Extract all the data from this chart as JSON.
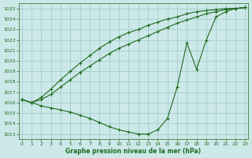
{
  "xlabel": "Graphe pression niveau de la mer (hPa)",
  "bg_color": "#cce8e8",
  "line_color": "#1f6b1f",
  "grid_color": "#9ec8c8",
  "ylim": [
    1012.5,
    1025.5
  ],
  "xlim": [
    -0.3,
    23.3
  ],
  "yticks": [
    1013,
    1014,
    1015,
    1016,
    1017,
    1018,
    1019,
    1020,
    1021,
    1022,
    1023,
    1024,
    1025
  ],
  "xticks": [
    0,
    1,
    2,
    3,
    4,
    5,
    6,
    7,
    8,
    9,
    10,
    11,
    12,
    13,
    14,
    15,
    16,
    17,
    18,
    19,
    20,
    21,
    22,
    23
  ],
  "line1": [
    1016.3,
    1016.0,
    1016.5,
    1017.3,
    1018.2,
    1019.0,
    1019.8,
    1020.5,
    1021.2,
    1021.8,
    1022.3,
    1022.7,
    1023.0,
    1023.4,
    1023.7,
    1024.0,
    1024.2,
    1024.5,
    1024.7,
    1024.8,
    1024.9,
    1025.0,
    1025.0,
    1025.1
  ],
  "line2": [
    1016.3,
    1016.0,
    1016.3,
    1016.8,
    1017.5,
    1018.2,
    1018.9,
    1019.5,
    1020.1,
    1020.7,
    1021.2,
    1021.6,
    1022.0,
    1022.4,
    1022.8,
    1023.2,
    1023.6,
    1023.9,
    1024.2,
    1024.5,
    1024.7,
    1024.9,
    1025.0,
    1025.1
  ],
  "line3": [
    1016.3,
    1016.0,
    1015.7,
    1015.5,
    1015.3,
    1015.1,
    1014.8,
    1014.5,
    1014.1,
    1013.7,
    1013.4,
    1013.2,
    1013.0,
    1013.0,
    1013.4,
    1014.5,
    1017.5,
    1021.7,
    1019.2,
    1022.0,
    1024.2,
    1024.7,
    1025.0,
    1025.1
  ]
}
